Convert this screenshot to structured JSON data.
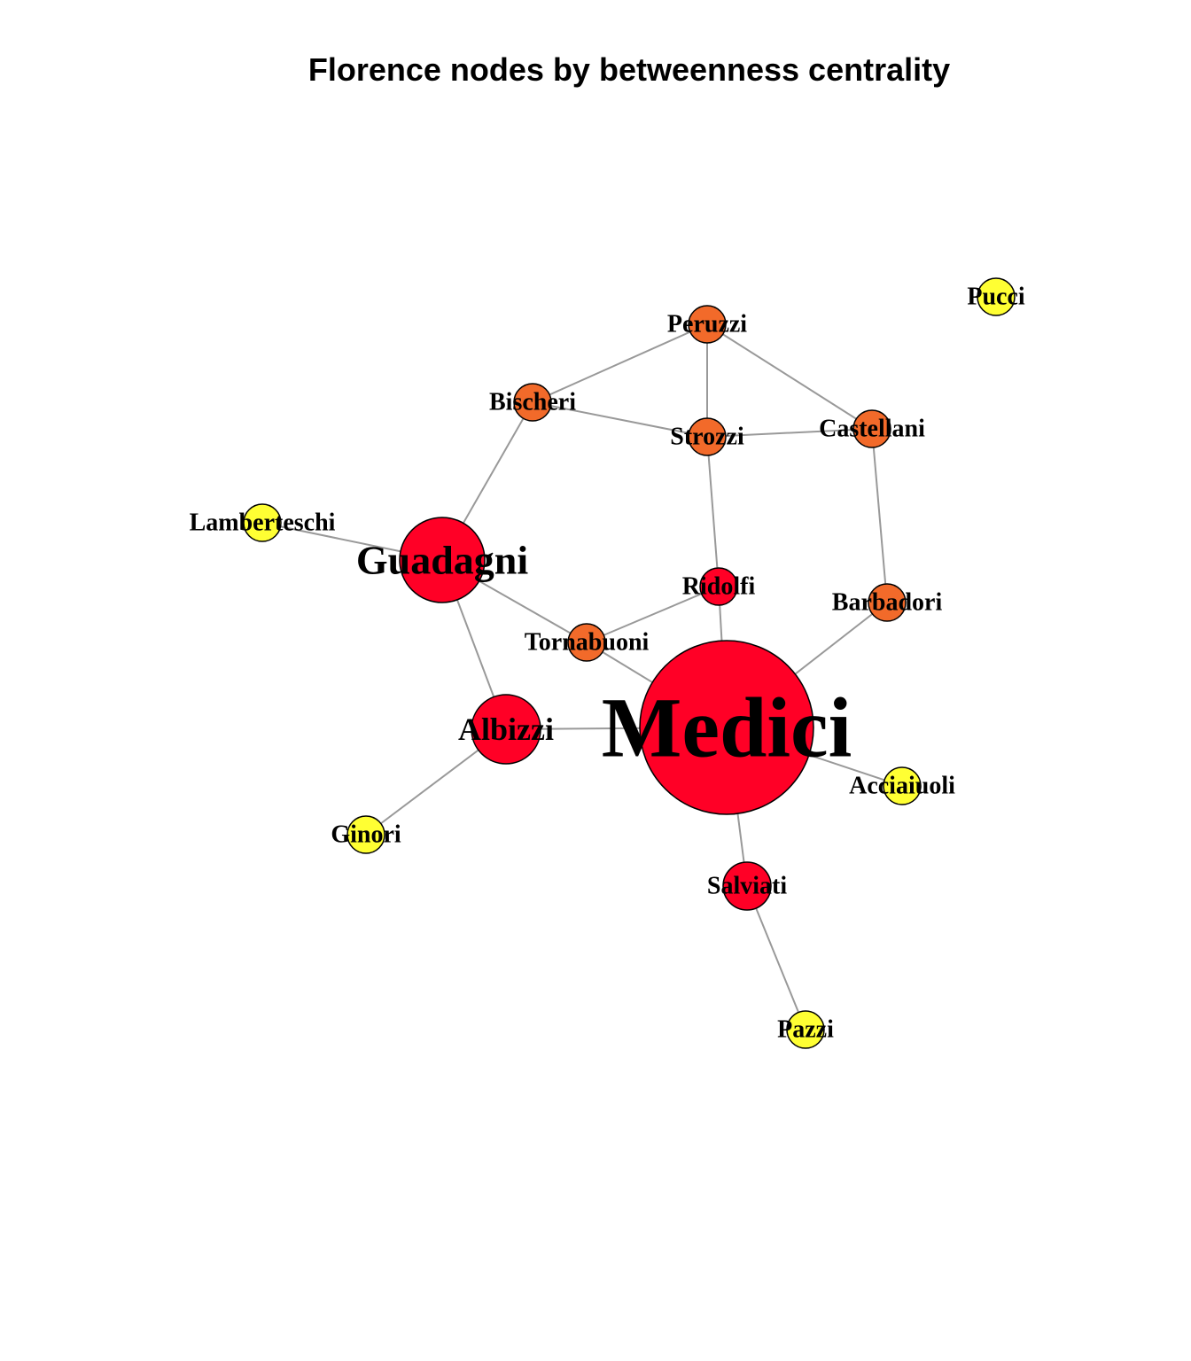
{
  "title": "Florence nodes by betweenness centrality",
  "colors": {
    "edge": "#999999",
    "node_stroke": "#000000",
    "low": "#FFFF33",
    "mid": "#F26A2A",
    "high": "#FF0026"
  },
  "nodes": [
    {
      "id": "Pucci",
      "label": "Pucci",
      "level": "low"
    },
    {
      "id": "Peruzzi",
      "label": "Peruzzi",
      "level": "mid"
    },
    {
      "id": "Bischeri",
      "label": "Bischeri",
      "level": "mid"
    },
    {
      "id": "Strozzi",
      "label": "Strozzi",
      "level": "mid"
    },
    {
      "id": "Castellani",
      "label": "Castellani",
      "level": "mid"
    },
    {
      "id": "Lamberteschi",
      "label": "Lamberteschi",
      "level": "low"
    },
    {
      "id": "Guadagni",
      "label": "Guadagni",
      "level": "high"
    },
    {
      "id": "Ridolfi",
      "label": "Ridolfi",
      "level": "high"
    },
    {
      "id": "Barbadori",
      "label": "Barbadori",
      "level": "mid"
    },
    {
      "id": "Tornabuoni",
      "label": "Tornabuoni",
      "level": "mid"
    },
    {
      "id": "Albizzi",
      "label": "Albizzi",
      "level": "high"
    },
    {
      "id": "Medici",
      "label": "Medici",
      "level": "high"
    },
    {
      "id": "Acciaiuoli",
      "label": "Acciaiuoli",
      "level": "low"
    },
    {
      "id": "Ginori",
      "label": "Ginori",
      "level": "low"
    },
    {
      "id": "Salviati",
      "label": "Salviati",
      "level": "high"
    },
    {
      "id": "Pazzi",
      "label": "Pazzi",
      "level": "low"
    }
  ],
  "edges": [
    [
      "Peruzzi",
      "Bischeri"
    ],
    [
      "Peruzzi",
      "Strozzi"
    ],
    [
      "Peruzzi",
      "Castellani"
    ],
    [
      "Bischeri",
      "Strozzi"
    ],
    [
      "Strozzi",
      "Castellani"
    ],
    [
      "Bischeri",
      "Guadagni"
    ],
    [
      "Strozzi",
      "Ridolfi"
    ],
    [
      "Castellani",
      "Barbadori"
    ],
    [
      "Lamberteschi",
      "Guadagni"
    ],
    [
      "Guadagni",
      "Tornabuoni"
    ],
    [
      "Guadagni",
      "Albizzi"
    ],
    [
      "Ridolfi",
      "Tornabuoni"
    ],
    [
      "Ridolfi",
      "Medici"
    ],
    [
      "Tornabuoni",
      "Medici"
    ],
    [
      "Barbadori",
      "Medici"
    ],
    [
      "Albizzi",
      "Medici"
    ],
    [
      "Albizzi",
      "Ginori"
    ],
    [
      "Medici",
      "Acciaiuoli"
    ],
    [
      "Medici",
      "Salviati"
    ],
    [
      "Salviati",
      "Pazzi"
    ]
  ]
}
